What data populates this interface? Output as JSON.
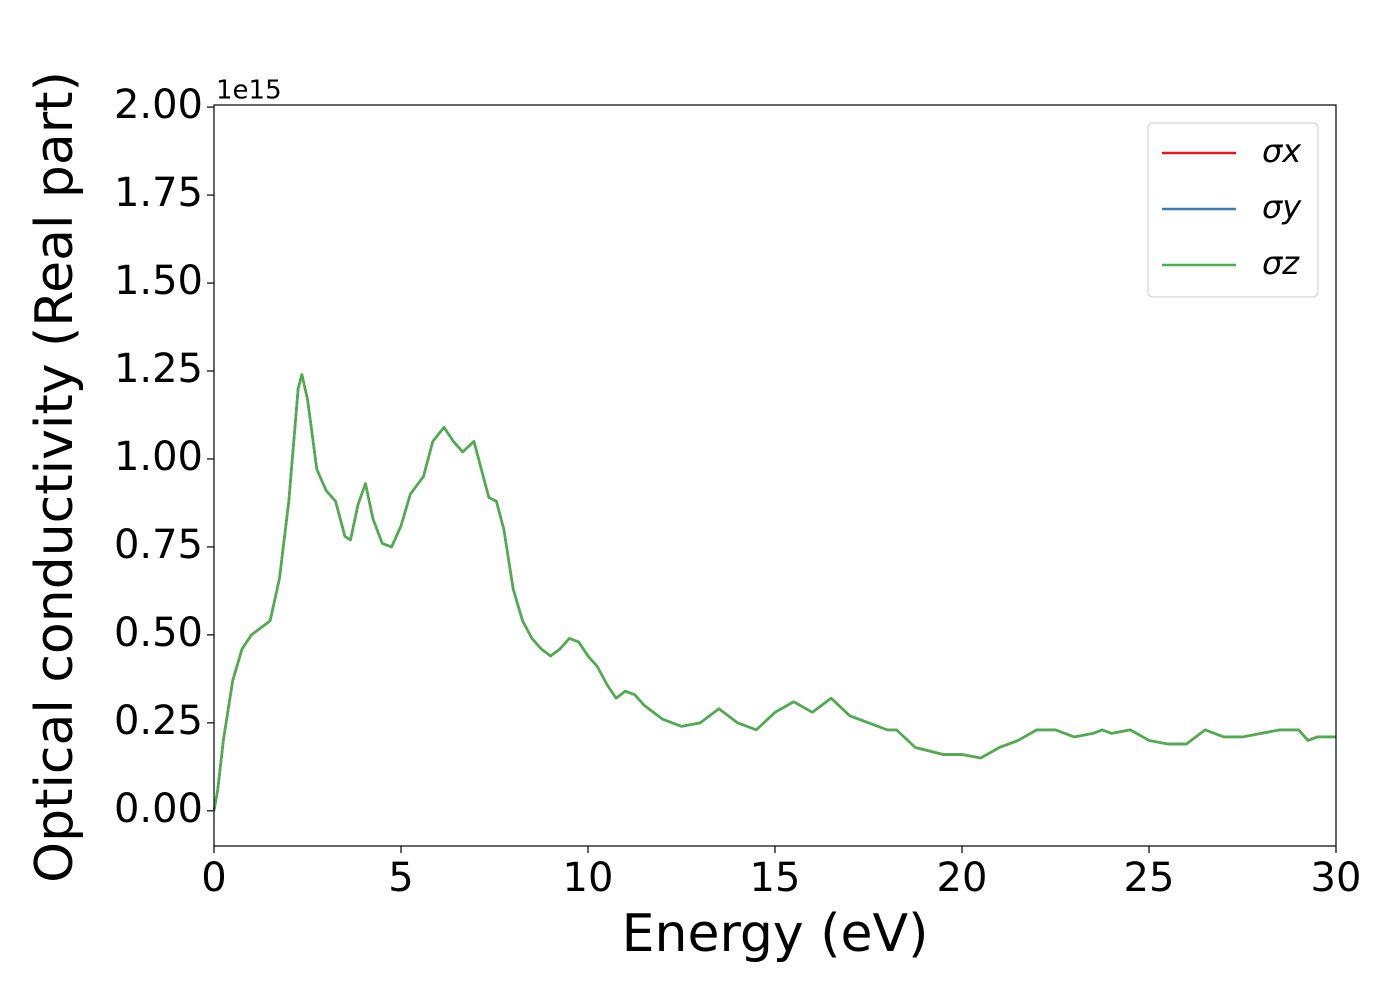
{
  "chart_data": {
    "type": "line",
    "xlabel": "Energy (eV)",
    "ylabel": "Optical conductivity (Real part)",
    "y_offset_text": "1e15",
    "x": [
      0,
      0.1,
      0.25,
      0.5,
      0.75,
      1.0,
      1.25,
      1.5,
      1.75,
      2.0,
      2.25,
      2.35,
      2.5,
      2.75,
      3.0,
      3.25,
      3.5,
      3.65,
      3.85,
      4.05,
      4.25,
      4.5,
      4.75,
      5.0,
      5.25,
      5.6,
      5.85,
      6.15,
      6.4,
      6.65,
      6.95,
      7.15,
      7.35,
      7.55,
      7.75,
      8.0,
      8.25,
      8.5,
      8.75,
      9.0,
      9.25,
      9.5,
      9.75,
      10.0,
      10.25,
      10.5,
      10.75,
      11.0,
      11.25,
      11.5,
      12.0,
      12.5,
      13.0,
      13.5,
      14.0,
      14.5,
      15.0,
      15.5,
      16.0,
      16.5,
      17.0,
      17.5,
      18.0,
      18.25,
      18.75,
      19.5,
      20.0,
      20.5,
      21.0,
      21.5,
      22.0,
      22.5,
      23.0,
      23.5,
      23.75,
      24.0,
      24.5,
      25.0,
      25.5,
      26.0,
      26.5,
      27.0,
      27.5,
      28.0,
      28.5,
      29.0,
      29.25,
      29.5,
      30.0
    ],
    "series": [
      {
        "name": "σx",
        "color": "#e41a1c",
        "values": [
          0,
          0.06,
          0.2,
          0.37,
          0.46,
          0.5,
          0.52,
          0.54,
          0.66,
          0.88,
          1.2,
          1.24,
          1.17,
          0.97,
          0.91,
          0.88,
          0.78,
          0.77,
          0.87,
          0.93,
          0.83,
          0.76,
          0.75,
          0.81,
          0.9,
          0.95,
          1.05,
          1.09,
          1.05,
          1.02,
          1.05,
          0.97,
          0.89,
          0.88,
          0.8,
          0.63,
          0.54,
          0.49,
          0.46,
          0.44,
          0.46,
          0.49,
          0.48,
          0.44,
          0.41,
          0.36,
          0.32,
          0.34,
          0.33,
          0.3,
          0.26,
          0.24,
          0.25,
          0.29,
          0.25,
          0.23,
          0.28,
          0.31,
          0.28,
          0.32,
          0.27,
          0.25,
          0.23,
          0.23,
          0.18,
          0.16,
          0.16,
          0.15,
          0.18,
          0.2,
          0.23,
          0.23,
          0.21,
          0.22,
          0.23,
          0.22,
          0.23,
          0.2,
          0.19,
          0.19,
          0.23,
          0.21,
          0.21,
          0.22,
          0.23,
          0.23,
          0.2,
          0.21,
          0.21
        ]
      },
      {
        "name": "σy",
        "color": "#377eb8",
        "values": [
          0,
          0.06,
          0.2,
          0.37,
          0.46,
          0.5,
          0.52,
          0.54,
          0.66,
          0.88,
          1.2,
          1.24,
          1.17,
          0.97,
          0.91,
          0.88,
          0.78,
          0.77,
          0.87,
          0.93,
          0.83,
          0.76,
          0.75,
          0.81,
          0.9,
          0.95,
          1.05,
          1.09,
          1.05,
          1.02,
          1.05,
          0.97,
          0.89,
          0.88,
          0.8,
          0.63,
          0.54,
          0.49,
          0.46,
          0.44,
          0.46,
          0.49,
          0.48,
          0.44,
          0.41,
          0.36,
          0.32,
          0.34,
          0.33,
          0.3,
          0.26,
          0.24,
          0.25,
          0.29,
          0.25,
          0.23,
          0.28,
          0.31,
          0.28,
          0.32,
          0.27,
          0.25,
          0.23,
          0.23,
          0.18,
          0.16,
          0.16,
          0.15,
          0.18,
          0.2,
          0.23,
          0.23,
          0.21,
          0.22,
          0.23,
          0.22,
          0.23,
          0.2,
          0.19,
          0.19,
          0.23,
          0.21,
          0.21,
          0.22,
          0.23,
          0.23,
          0.2,
          0.21,
          0.21
        ]
      },
      {
        "name": "σz",
        "color": "#4daf4a",
        "values": [
          0,
          0.06,
          0.2,
          0.37,
          0.46,
          0.5,
          0.52,
          0.54,
          0.66,
          0.88,
          1.2,
          1.24,
          1.17,
          0.97,
          0.91,
          0.88,
          0.78,
          0.77,
          0.87,
          0.93,
          0.83,
          0.76,
          0.75,
          0.81,
          0.9,
          0.95,
          1.05,
          1.09,
          1.05,
          1.02,
          1.05,
          0.97,
          0.89,
          0.88,
          0.8,
          0.63,
          0.54,
          0.49,
          0.46,
          0.44,
          0.46,
          0.49,
          0.48,
          0.44,
          0.41,
          0.36,
          0.32,
          0.34,
          0.33,
          0.3,
          0.26,
          0.24,
          0.25,
          0.29,
          0.25,
          0.23,
          0.28,
          0.31,
          0.28,
          0.32,
          0.27,
          0.25,
          0.23,
          0.23,
          0.18,
          0.16,
          0.16,
          0.15,
          0.18,
          0.2,
          0.23,
          0.23,
          0.21,
          0.22,
          0.23,
          0.22,
          0.23,
          0.2,
          0.19,
          0.19,
          0.23,
          0.21,
          0.21,
          0.22,
          0.23,
          0.23,
          0.2,
          0.21,
          0.21
        ]
      }
    ],
    "xlim": [
      0,
      30
    ],
    "xticks": [
      0,
      5,
      10,
      15,
      20,
      25,
      30
    ],
    "ylim": [
      -0.1,
      2.006
    ],
    "yticks": [
      {
        "value": 0,
        "label": "0.00"
      },
      {
        "value": 0.25,
        "label": "0.25"
      },
      {
        "value": 0.5,
        "label": "0.50"
      },
      {
        "value": 0.75,
        "label": "0.75"
      },
      {
        "value": 1,
        "label": "1.00"
      },
      {
        "value": 1.25,
        "label": "1.25"
      },
      {
        "value": 1.5,
        "label": "1.50"
      },
      {
        "value": 1.75,
        "label": "1.75"
      },
      {
        "value": 2,
        "label": "2.00"
      }
    ],
    "legend": "upper right",
    "grid": false
  }
}
